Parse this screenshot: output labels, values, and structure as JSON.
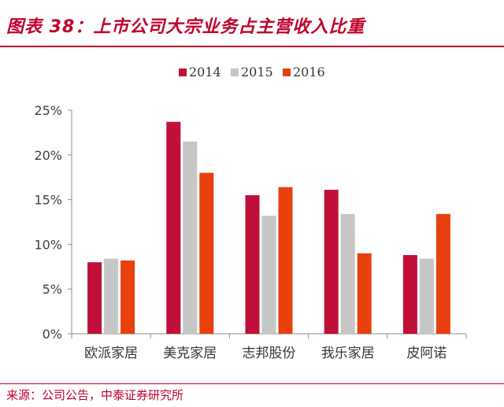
{
  "header": {
    "title": "图表 38：上市公司大宗业务占主营收入比重"
  },
  "footer": {
    "source": "来源：公司公告，中泰证券研究所"
  },
  "chart_data": {
    "type": "bar",
    "title": "图表 38：上市公司大宗业务占主营收入比重",
    "xlabel": "",
    "ylabel": "",
    "ylim": [
      0,
      25
    ],
    "yticks": [
      "0%",
      "5%",
      "10%",
      "15%",
      "20%",
      "25%"
    ],
    "legend_position": "top-center",
    "grid": false,
    "categories": [
      "欧派家居",
      "美克家居",
      "志邦股份",
      "我乐家居",
      "皮阿诺"
    ],
    "series": [
      {
        "name": "2014",
        "color": "#c0103a",
        "values": [
          8.0,
          23.7,
          15.5,
          16.1,
          8.8
        ]
      },
      {
        "name": "2015",
        "color": "#c6c6c6",
        "values": [
          8.4,
          21.5,
          13.2,
          13.4,
          8.4
        ]
      },
      {
        "name": "2016",
        "color": "#e8400e",
        "values": [
          8.2,
          18.0,
          16.4,
          9.0,
          13.4
        ]
      }
    ]
  }
}
